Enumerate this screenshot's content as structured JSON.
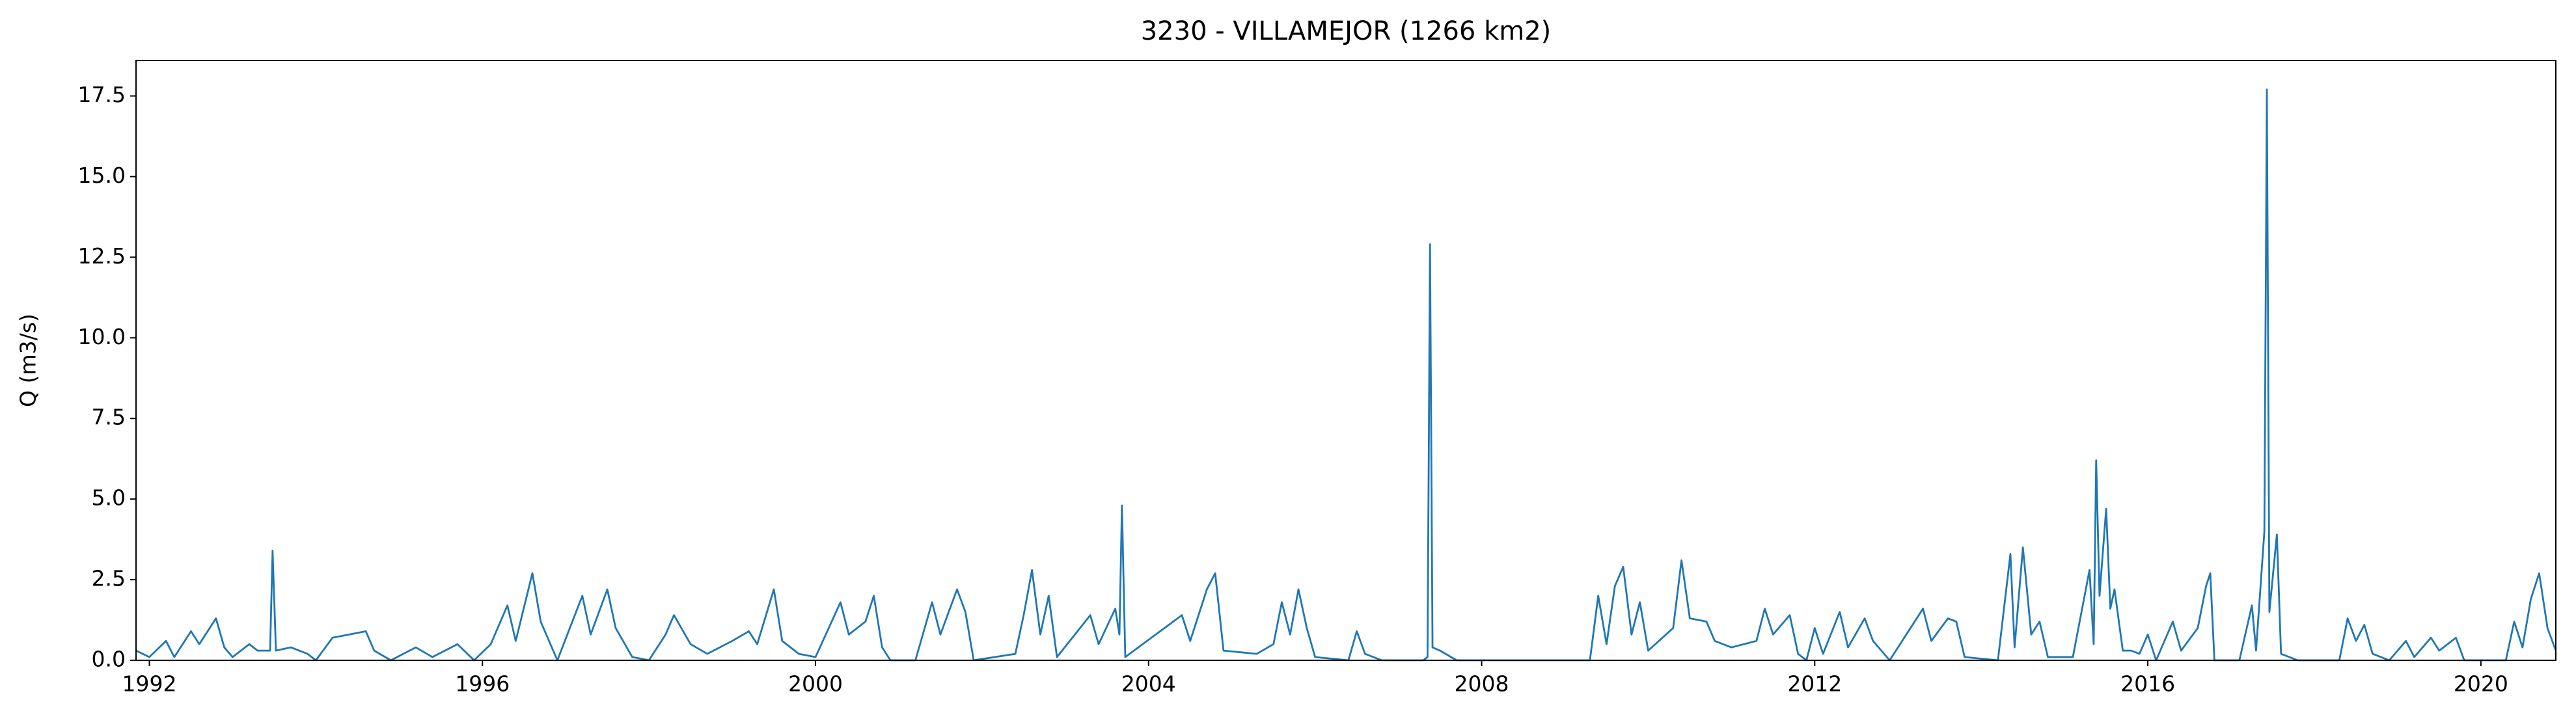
{
  "chart_data": {
    "type": "line",
    "title": "3230 - VILLAMEJOR (1266 km2)",
    "ylabel": "Q (m3/s)",
    "x": [
      1991.84,
      1992.0,
      1992.2,
      1992.3,
      1992.5,
      1992.6,
      1992.8,
      1992.9,
      1993.0,
      1993.2,
      1993.3,
      1993.45,
      1993.48,
      1993.52,
      1993.7,
      1993.9,
      1994.0,
      1994.2,
      1994.4,
      1994.6,
      1994.7,
      1994.9,
      1995.2,
      1995.4,
      1995.7,
      1995.9,
      1996.1,
      1996.3,
      1996.4,
      1996.6,
      1996.7,
      1996.9,
      1997.2,
      1997.3,
      1997.5,
      1997.6,
      1997.8,
      1998.0,
      1998.2,
      1998.3,
      1998.5,
      1998.7,
      1999.0,
      1999.2,
      1999.3,
      1999.5,
      1999.6,
      1999.8,
      2000.0,
      2000.3,
      2000.4,
      2000.6,
      2000.7,
      2000.8,
      2000.9,
      2001.2,
      2001.4,
      2001.5,
      2001.7,
      2001.8,
      2001.9,
      2002.4,
      2002.5,
      2002.6,
      2002.7,
      2002.8,
      2002.9,
      2003.3,
      2003.4,
      2003.6,
      2003.65,
      2003.68,
      2003.72,
      2004.4,
      2004.5,
      2004.7,
      2004.8,
      2004.9,
      2005.3,
      2005.5,
      2005.6,
      2005.7,
      2005.8,
      2005.9,
      2006.0,
      2006.4,
      2006.5,
      2006.6,
      2006.8,
      2007.3,
      2007.35,
      2007.38,
      2007.41,
      2007.5,
      2007.7,
      2009.3,
      2009.4,
      2009.5,
      2009.6,
      2009.7,
      2009.8,
      2009.9,
      2010.0,
      2010.3,
      2010.4,
      2010.5,
      2010.7,
      2010.8,
      2011.0,
      2011.3,
      2011.4,
      2011.5,
      2011.7,
      2011.8,
      2011.9,
      2012.0,
      2012.1,
      2012.3,
      2012.4,
      2012.6,
      2012.7,
      2012.9,
      2013.3,
      2013.4,
      2013.6,
      2013.7,
      2013.8,
      2014.2,
      2014.35,
      2014.4,
      2014.5,
      2014.6,
      2014.7,
      2014.8,
      2015.1,
      2015.3,
      2015.35,
      2015.38,
      2015.42,
      2015.5,
      2015.55,
      2015.6,
      2015.7,
      2015.8,
      2015.9,
      2016.0,
      2016.1,
      2016.3,
      2016.4,
      2016.6,
      2016.7,
      2016.75,
      2016.8,
      2017.1,
      2017.25,
      2017.3,
      2017.4,
      2017.43,
      2017.46,
      2017.55,
      2017.6,
      2017.8,
      2018.3,
      2018.4,
      2018.5,
      2018.6,
      2018.7,
      2018.9,
      2019.1,
      2019.2,
      2019.4,
      2019.5,
      2019.7,
      2019.8,
      2020.3,
      2020.4,
      2020.5,
      2020.6,
      2020.7,
      2020.8,
      2020.9
    ],
    "series": [
      {
        "color": "#1f77b4",
        "values": [
          0.3,
          0.1,
          0.6,
          0.1,
          0.9,
          0.5,
          1.3,
          0.4,
          0.1,
          0.5,
          0.3,
          0.3,
          3.4,
          0.3,
          0.4,
          0.2,
          0.0,
          0.7,
          0.8,
          0.9,
          0.3,
          0.0,
          0.4,
          0.1,
          0.5,
          0.0,
          0.5,
          1.7,
          0.6,
          2.7,
          1.2,
          0.0,
          2.0,
          0.8,
          2.2,
          1.0,
          0.1,
          0.0,
          0.8,
          1.4,
          0.5,
          0.2,
          0.6,
          0.9,
          0.5,
          2.2,
          0.6,
          0.2,
          0.1,
          1.8,
          0.8,
          1.2,
          2.0,
          0.4,
          0.0,
          0.0,
          1.8,
          0.8,
          2.2,
          1.5,
          0.0,
          0.2,
          1.4,
          2.8,
          0.8,
          2.0,
          0.1,
          1.4,
          0.5,
          1.6,
          0.8,
          4.8,
          0.1,
          1.4,
          0.6,
          2.2,
          2.7,
          0.3,
          0.2,
          0.5,
          1.8,
          0.8,
          2.2,
          1.0,
          0.1,
          0.0,
          0.9,
          0.2,
          0.0,
          0.0,
          0.1,
          12.9,
          0.4,
          0.3,
          0.0,
          0.0,
          2.0,
          0.5,
          2.3,
          2.9,
          0.8,
          1.8,
          0.3,
          1.0,
          3.1,
          1.3,
          1.2,
          0.6,
          0.4,
          0.6,
          1.6,
          0.8,
          1.4,
          0.2,
          0.0,
          1.0,
          0.2,
          1.5,
          0.4,
          1.3,
          0.6,
          0.0,
          1.6,
          0.6,
          1.3,
          1.2,
          0.1,
          0.0,
          3.3,
          0.4,
          3.5,
          0.8,
          1.2,
          0.1,
          0.1,
          2.8,
          0.5,
          6.2,
          2.0,
          4.7,
          1.6,
          2.2,
          0.3,
          0.3,
          0.2,
          0.8,
          0.0,
          1.2,
          0.3,
          1.0,
          2.3,
          2.7,
          0.0,
          0.0,
          1.7,
          0.3,
          4.0,
          17.7,
          1.5,
          3.9,
          0.2,
          0.0,
          0.0,
          1.3,
          0.6,
          1.1,
          0.2,
          0.0,
          0.6,
          0.1,
          0.7,
          0.3,
          0.7,
          0.0,
          0.0,
          1.2,
          0.4,
          1.9,
          2.7,
          1.0,
          0.3
        ]
      }
    ],
    "xlim": [
      1991.84,
      2020.9
    ],
    "xticks": [
      1992,
      1996,
      2000,
      2004,
      2008,
      2012,
      2016,
      2020
    ],
    "ylim": [
      0,
      18.6
    ],
    "yticks": [
      {
        "value": 0,
        "label": "0.0"
      },
      2.5,
      {
        "value": 5,
        "label": "5.0"
      },
      7.5,
      {
        "value": 10,
        "label": "10.0"
      },
      12.5,
      {
        "value": 15,
        "label": "15.0"
      },
      17.5
    ],
    "grid": false
  }
}
